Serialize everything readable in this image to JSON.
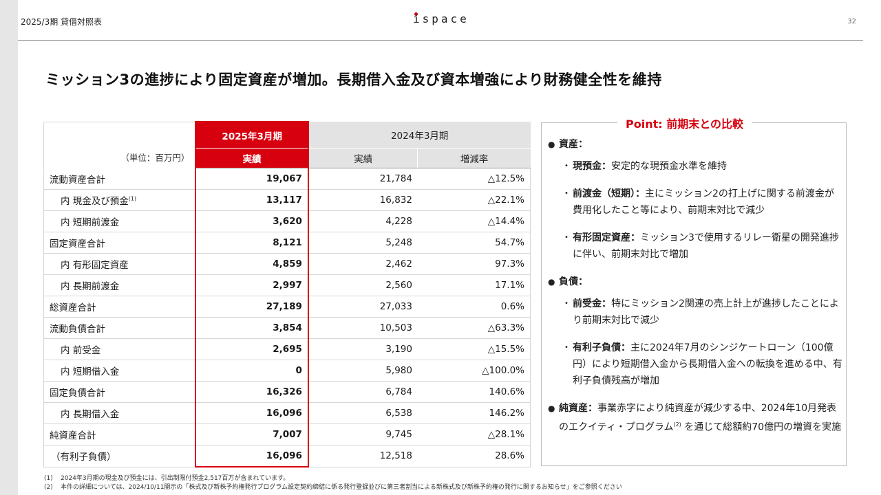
{
  "header": {
    "section": "2025/3期 貸借対照表",
    "logo": "ispace",
    "page_number": "32"
  },
  "title": "ミッション3の進捗により固定資産が増加。長期借入金及び資本増強により財務健全性を維持",
  "table": {
    "unit": "（単位：百万円）",
    "period_current": "2025年3月期",
    "period_prior": "2024年3月期",
    "col_actual_current": "実績",
    "col_actual_prior": "実績",
    "col_change": "増減率",
    "rows": [
      {
        "label": "流動資産合計",
        "current": "19,067",
        "prior": "21,784",
        "change": "△12.5%"
      },
      {
        "label": "内 現金及び預金",
        "note": "(1)",
        "current": "13,117",
        "prior": "16,832",
        "change": "△22.1%"
      },
      {
        "label": "内 短期前渡金",
        "current": "3,620",
        "prior": "4,228",
        "change": "△14.4%"
      },
      {
        "label": "固定資産合計",
        "current": "8,121",
        "prior": "5,248",
        "change": "54.7%"
      },
      {
        "label": "内 有形固定資産",
        "current": "4,859",
        "prior": "2,462",
        "change": "97.3%"
      },
      {
        "label": "内 長期前渡金",
        "current": "2,997",
        "prior": "2,560",
        "change": "17.1%"
      },
      {
        "label": "総資産合計",
        "current": "27,189",
        "prior": "27,033",
        "change": "0.6%"
      },
      {
        "label": "流動負債合計",
        "current": "3,854",
        "prior": "10,503",
        "change": "△63.3%"
      },
      {
        "label": "内 前受金",
        "current": "2,695",
        "prior": "3,190",
        "change": "△15.5%"
      },
      {
        "label": "内 短期借入金",
        "current": "0",
        "prior": "5,980",
        "change": "△100.0%"
      },
      {
        "label": "固定負債合計",
        "current": "16,326",
        "prior": "6,784",
        "change": "140.6%"
      },
      {
        "label": "内 長期借入金",
        "current": "16,096",
        "prior": "6,538",
        "change": "146.2%"
      },
      {
        "label": "純資産合計",
        "current": "7,007",
        "prior": "9,745",
        "change": "△28.1%"
      },
      {
        "label": "（有利子負債）",
        "current": "16,096",
        "prior": "12,518",
        "change": "28.6%"
      }
    ]
  },
  "point": {
    "title": "Point: 前期末との比較",
    "assets_title": "資産：",
    "assets": [
      {
        "title": "現預金：",
        "text": "安定的な現預金水準を維持"
      },
      {
        "title": "前渡金（短期）：",
        "text": "主にミッション2の打上げに関する前渡金が費用化したこと等により、前期末対比で減少"
      },
      {
        "title": "有形固定資産：",
        "text": "ミッション3で使用するリレー衛星の開発進捗に伴い、前期末対比で増加"
      }
    ],
    "liabilities_title": "負債：",
    "liabilities": [
      {
        "title": "前受金：",
        "text": "特にミッション2関連の売上計上が進捗したことにより前期末対比で減少"
      },
      {
        "title": "有利子負債：",
        "text": "主に2024年7月のシンジケートローン（100億円）により短期借入金から長期借入金への転換を進める中、有利子負債残高が増加"
      }
    ],
    "equity_title": "純資産：",
    "equity_text_1": "事業赤字により純資産が減少する中、2024年10月発表のエクイティ・プログラム",
    "equity_note": "(2)",
    "equity_text_2": "を通じて総額約70億円の増資を実施"
  },
  "footnotes": [
    {
      "n": "(1)",
      "text": "2024年3月期の現金及び預金には、引出制限付預金2,517百万が含まれています。"
    },
    {
      "n": "(2)",
      "text": "本件の詳細については、2024/10/11開示の「株式及び新株予約権発行プログラム設定契約締結に係る発行登録並びに第三者割当による新株式及び新株予約権の発行に関するお知らせ」をご参照ください"
    }
  ]
}
